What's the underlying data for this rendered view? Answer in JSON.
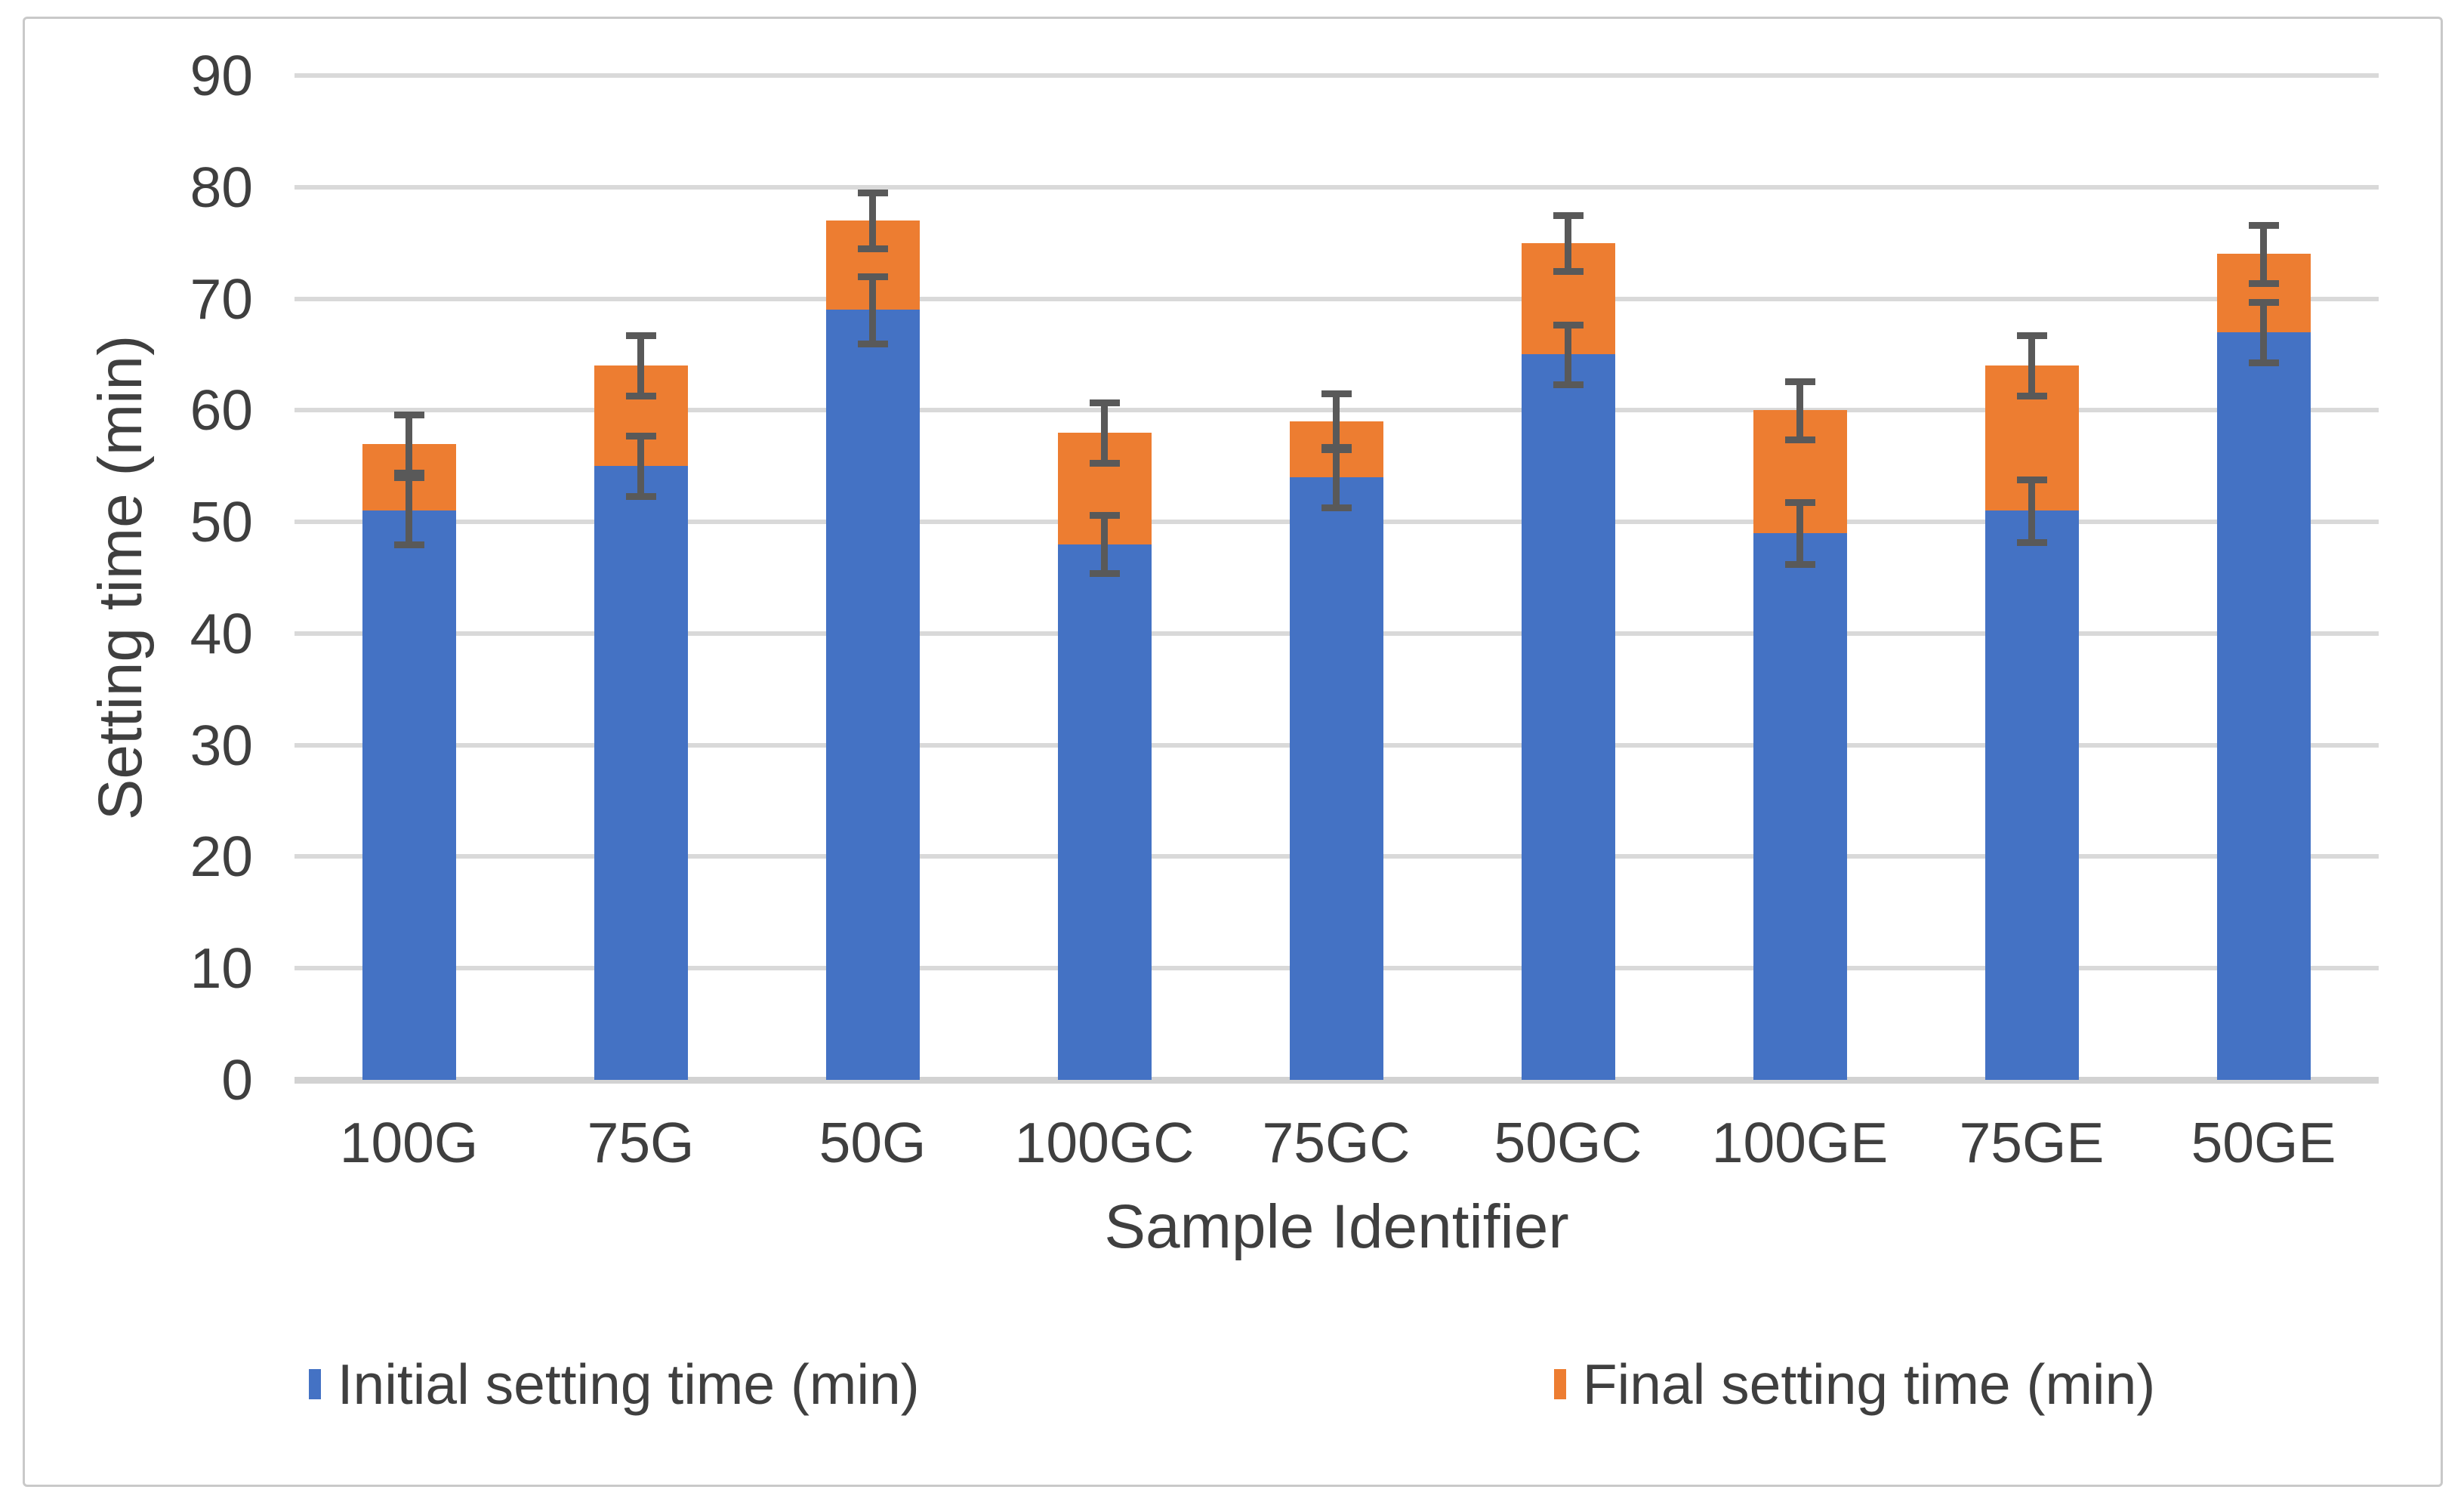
{
  "figure": {
    "kind": "stacked column chart with error bars",
    "background": "#ffffff",
    "border_color": "#c9c9c9"
  },
  "chart_data": {
    "type": "bar",
    "stacked": true,
    "title": "",
    "xlabel": "Sample Identifier",
    "ylabel": "Setting time (min)",
    "categories": [
      "100G",
      "75G",
      "50G",
      "100GC",
      "75GC",
      "50GC",
      "100GE",
      "75GE",
      "50GE"
    ],
    "series": [
      {
        "name": "Initial setting time (min)",
        "color": "#4472C4",
        "values": [
          51,
          55,
          69,
          48,
          54,
          65,
          49,
          51,
          67
        ],
        "error_bars": [
          3,
          2.7,
          3,
          2.6,
          2.7,
          2.7,
          2.8,
          2.8,
          2.7
        ]
      },
      {
        "name": "Final setting time (min)",
        "color": "#ED7D31",
        "values": [
          57,
          64,
          77,
          58,
          59,
          75,
          60,
          64,
          74
        ],
        "note": "values are the stack tops (final setting time); orange segment spans from initial value to final value",
        "error_bars": [
          2.6,
          2.7,
          2.5,
          2.7,
          2.5,
          2.5,
          2.6,
          2.7,
          2.6
        ]
      }
    ],
    "ylim": [
      0,
      90
    ],
    "y_ticks": [
      0,
      10,
      20,
      30,
      40,
      50,
      60,
      70,
      80,
      90
    ],
    "grid": true,
    "legend_position": "bottom"
  },
  "colors": {
    "initial_series": "#4472C4",
    "final_series": "#ED7D31",
    "error_bar": "#595959",
    "gridline": "#d9d9d9",
    "axis_line": "#d2d2d2",
    "text": "#3f3f3f",
    "frame_border": "#c9c9c9"
  }
}
